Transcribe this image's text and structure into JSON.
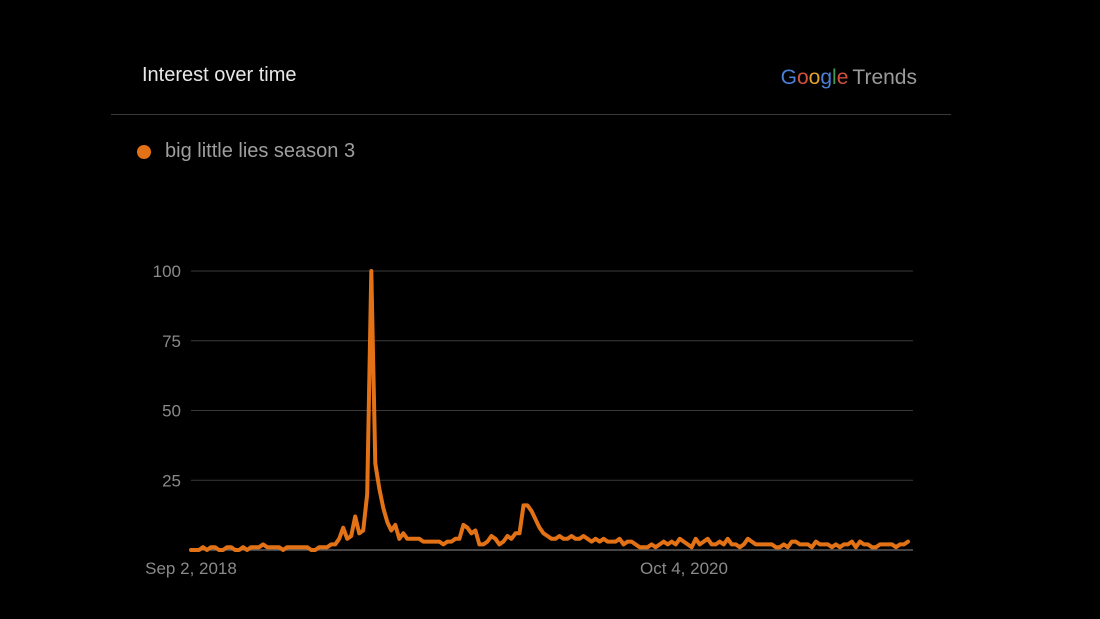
{
  "header": {
    "title": "Interest over time",
    "brand_google": "Google",
    "brand_trends": "Trends"
  },
  "colors": {
    "series": "#e37216",
    "grid": "#3a3a3a",
    "axis": "#8a8a8a"
  },
  "chart_data": {
    "type": "line",
    "series": [
      {
        "name": "big little lies season 3",
        "values": [
          0,
          0,
          0,
          1,
          0,
          1,
          1,
          0,
          0,
          1,
          1,
          0,
          0,
          1,
          0,
          1,
          1,
          1,
          2,
          1,
          1,
          1,
          1,
          0,
          1,
          1,
          1,
          1,
          1,
          1,
          0,
          0,
          1,
          1,
          1,
          2,
          2,
          4,
          8,
          4,
          5,
          12,
          6,
          7,
          20,
          100,
          31,
          22,
          15,
          10,
          7,
          9,
          4,
          6,
          4,
          4,
          4,
          4,
          3,
          3,
          3,
          3,
          3,
          2,
          3,
          3,
          4,
          4,
          9,
          8,
          6,
          7,
          2,
          2,
          3,
          5,
          4,
          2,
          3,
          5,
          4,
          6,
          6,
          16,
          16,
          14,
          11,
          8,
          6,
          5,
          4,
          4,
          5,
          4,
          4,
          5,
          4,
          4,
          5,
          4,
          3,
          4,
          3,
          4,
          3,
          3,
          3,
          4,
          2,
          3,
          3,
          2,
          1,
          1,
          1,
          2,
          1,
          2,
          3,
          2,
          3,
          2,
          4,
          3,
          2,
          1,
          4,
          2,
          3,
          4,
          2,
          2,
          3,
          2,
          4,
          2,
          2,
          1,
          2,
          4,
          3,
          2,
          2,
          2,
          2,
          2,
          1,
          1,
          2,
          1,
          3,
          3,
          2,
          2,
          2,
          1,
          3,
          2,
          2,
          2,
          1,
          2,
          1,
          2,
          2,
          3,
          1,
          3,
          2,
          2,
          1,
          1,
          2,
          2,
          2,
          2,
          1,
          2,
          2,
          3
        ]
      }
    ],
    "x_labels": [
      "Sep 2, 2018",
      "Oct 4, 2020"
    ],
    "yticks": [
      100,
      75,
      50,
      25
    ],
    "ylim": [
      0,
      100
    ]
  }
}
